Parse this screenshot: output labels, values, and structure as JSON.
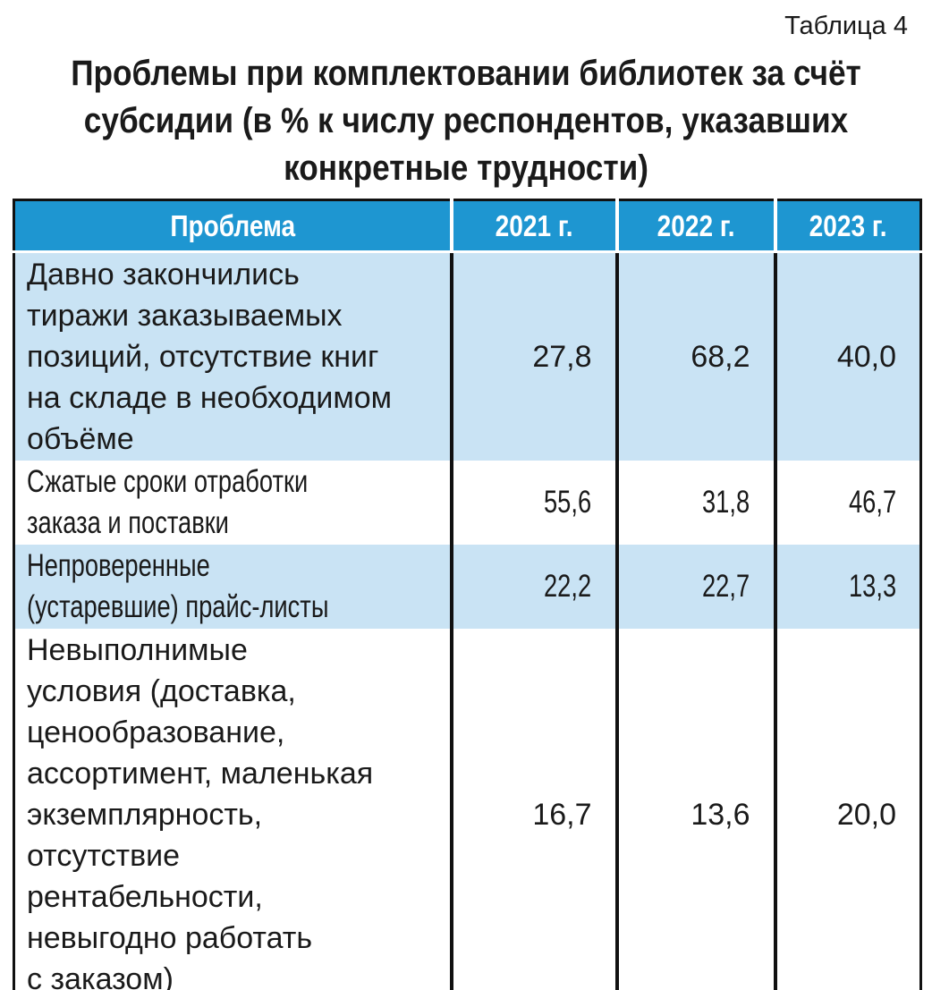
{
  "caption": "Таблица 4",
  "title": "Проблемы при комплектовании библиотек за счёт\nсубсидии (в % к числу респондентов, указавших\nконкретные трудности)",
  "colors": {
    "header_bg": "#1E96D1",
    "header_text": "#FFFFFF",
    "row_alt_bg": "#C9E3F4",
    "border": "#111111"
  },
  "table": {
    "columns": [
      "Проблема",
      "2021 г.",
      "2022 г.",
      "2023 г."
    ],
    "rows": [
      {
        "problem": "Давно закончились\nтиражи заказываемых\nпозиций, отсутствие книг\nна складе в необходимом\nобъёме",
        "v2021": "27,8",
        "v2022": "68,2",
        "v2023": "40,0"
      },
      {
        "problem": "Сжатые сроки отработки\nзаказа и поставки",
        "v2021": "55,6",
        "v2022": "31,8",
        "v2023": "46,7"
      },
      {
        "problem": "Непроверенные\n(устаревшие) прайс-листы",
        "v2021": "22,2",
        "v2022": "22,7",
        "v2023": "13,3"
      },
      {
        "problem": "Невыполнимые\nусловия (доставка,\nценообразование,\nассортимент, маленькая\nэкземплярность,\nотсутствие\nрентабельности,\nневыгодно работать\nс заказом)",
        "v2021": "16,7",
        "v2022": "13,6",
        "v2023": "20,0"
      }
    ]
  }
}
